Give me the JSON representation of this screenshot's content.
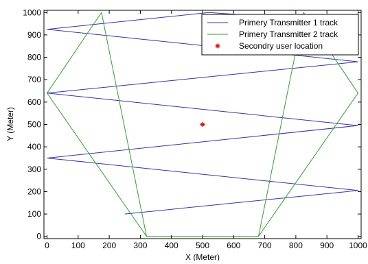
{
  "chart_data": {
    "type": "line",
    "title": "",
    "xlabel": "X (Meter)",
    "ylabel": "Y (Meter)",
    "xlim": [
      -10,
      1010
    ],
    "ylim": [
      -10,
      1010
    ],
    "xticks": [
      0,
      100,
      200,
      300,
      400,
      500,
      600,
      700,
      800,
      900,
      1000
    ],
    "yticks": [
      0,
      100,
      200,
      300,
      400,
      500,
      600,
      700,
      800,
      900,
      1000
    ],
    "grid": false,
    "legend_position": "top-right",
    "series": [
      {
        "name": "Primery Transmitter 1 track",
        "color": "#3333aa",
        "marker": "none",
        "x": [
          250,
          1000,
          0,
          1000,
          0,
          1000,
          0,
          520,
          1000
        ],
        "y": [
          100,
          205,
          350,
          495,
          640,
          780,
          925,
          1000,
          955
        ]
      },
      {
        "name": "Primery Transmitter 2 track",
        "color": "#2e9e2e",
        "marker": "none",
        "x": [
          320,
          175,
          0,
          320,
          680,
          1000,
          825,
          680
        ],
        "y": [
          0,
          1000,
          640,
          0,
          0,
          640,
          1000,
          0
        ]
      },
      {
        "name": "Secondry user location",
        "color": "#dd1111",
        "marker": "*",
        "x": [
          500
        ],
        "y": [
          500
        ]
      }
    ]
  }
}
